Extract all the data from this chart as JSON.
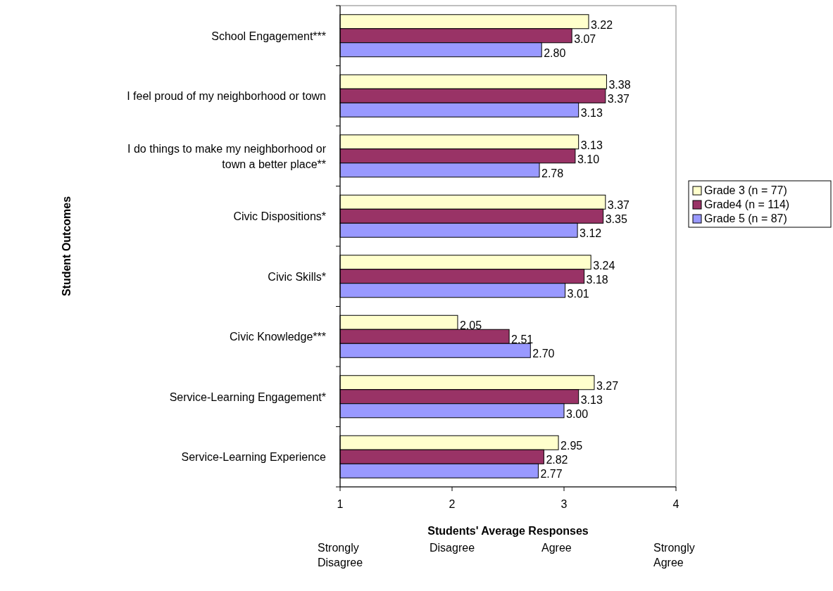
{
  "chart_data": {
    "type": "bar",
    "orientation": "horizontal",
    "xlabel": "Students' Average Responses",
    "ylabel": "Student Outcomes",
    "categories": [
      "School Engagement***",
      "I feel proud of my neighborhood or town",
      "I do things to make my neighborhood or town a better place**",
      "Civic Dispositions*",
      "Civic Skills*",
      "Civic Knowledge***",
      "Service-Learning Engagement*",
      "Service-Learning Experience"
    ],
    "series": [
      {
        "name": "Grade 3 (n = 77)",
        "color": "#ffffcc",
        "values": [
          3.22,
          3.38,
          3.13,
          3.37,
          3.24,
          2.05,
          3.27,
          2.95
        ],
        "value_labels": [
          "3.22",
          "3.38",
          "3.13",
          "3.37",
          "3.24",
          "2.05",
          "3.27",
          "2.95"
        ]
      },
      {
        "name": "Grade4 (n = 114)",
        "color": "#993366",
        "values": [
          3.07,
          3.37,
          3.1,
          3.35,
          3.18,
          2.51,
          3.13,
          2.82
        ],
        "value_labels": [
          "3.07",
          "3.37",
          "3.10",
          "3.35",
          "3.18",
          "2.51",
          "3.13",
          "2.82"
        ]
      },
      {
        "name": "Grade 5 (n = 87)",
        "color": "#9999ff",
        "values": [
          2.8,
          3.13,
          2.78,
          3.12,
          3.01,
          2.7,
          3.0,
          2.77
        ],
        "value_labels": [
          "2.80",
          "3.13",
          "2.78",
          "3.12",
          "3.01",
          "2.70",
          "3.00",
          "2.77"
        ]
      }
    ],
    "xlim": [
      1,
      4
    ],
    "xticks": [
      1,
      2,
      3,
      4
    ],
    "legend": "right",
    "annotations": [
      "Strongly Disagree",
      "Disagree",
      "Agree",
      "Strongly Agree"
    ]
  }
}
